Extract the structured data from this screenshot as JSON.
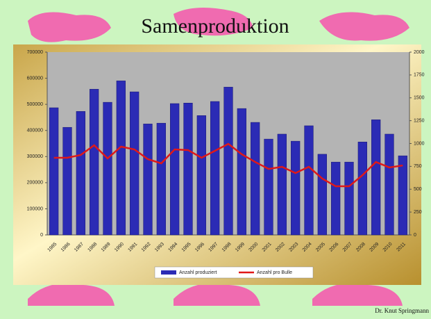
{
  "title": "Samenproduktion",
  "footer": "Dr. Knut Springmann",
  "chart_data": {
    "type": "bar-line",
    "categories": [
      "1985",
      "1986",
      "1987",
      "1988",
      "1989",
      "1990",
      "1991",
      "1992",
      "1993",
      "1994",
      "1995",
      "1996",
      "1997",
      "1998",
      "1999",
      "2000",
      "2001",
      "2002",
      "2003",
      "2004",
      "2005",
      "2006",
      "2007",
      "2008",
      "2009",
      "2010",
      "2011"
    ],
    "series": [
      {
        "name": "Anzahl produziert",
        "color": "#2b2bb5",
        "values": [
          487000,
          412000,
          473000,
          558000,
          508000,
          590000,
          548000,
          425000,
          428000,
          503000,
          505000,
          457000,
          511000,
          566000,
          484000,
          431000,
          367000,
          386000,
          359000,
          418000,
          309000,
          279000,
          279000,
          356000,
          441000,
          386000,
          303000
        ]
      },
      {
        "name": "Anzahl pro Bulle",
        "color": "#e01818",
        "axis": "y2",
        "values": [
          844,
          844,
          875,
          981,
          837,
          966,
          935,
          829,
          783,
          935,
          928,
          844,
          920,
          996,
          882,
          798,
          722,
          745,
          677,
          745,
          616,
          532,
          532,
          654,
          798,
          738,
          760
        ]
      }
    ],
    "ylim": [
      0,
      700000
    ],
    "yticks": [
      0,
      100000,
      200000,
      300000,
      400000,
      500000,
      600000,
      700000
    ],
    "y2lim": [
      0,
      2000
    ],
    "y2ticks": [
      0,
      250,
      500,
      750,
      1000,
      1250,
      1500,
      1750,
      2000
    ],
    "grid": false,
    "legend": "bottom"
  }
}
